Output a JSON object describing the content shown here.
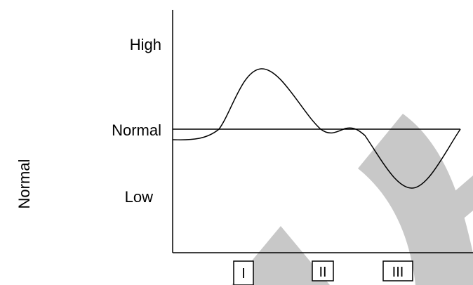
{
  "y_axis_title": "Normal",
  "y_levels": {
    "high": "High",
    "normal": "Normal",
    "low": "Low"
  },
  "phases": [
    "I",
    "II",
    "III"
  ],
  "colors": {
    "line": "#000000",
    "watermark": "#c8c8c8",
    "background": "#ffffff"
  }
}
